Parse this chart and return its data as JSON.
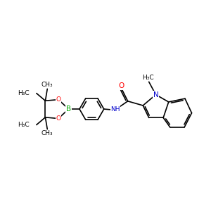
{
  "bg_color": "#ffffff",
  "bond_color": "#000000",
  "bond_width": 1.2,
  "atom_colors": {
    "B": "#00aa00",
    "O": "#ff0000",
    "N": "#0000cc",
    "C": "#000000"
  },
  "font_size": 6.5,
  "xlim": [
    -5.0,
    5.5
  ],
  "ylim": [
    -2.2,
    2.2
  ]
}
